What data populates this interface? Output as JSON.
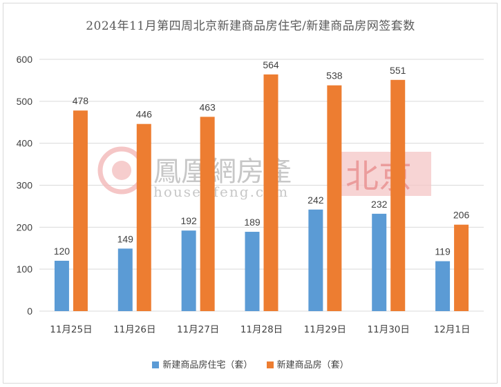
{
  "chart_data": {
    "type": "bar",
    "title": "2024年11月第四周北京新建商品房住宅/新建商品房网签套数",
    "categories": [
      "11月25日",
      "11月26日",
      "11月27日",
      "11月28日",
      "11月29日",
      "11月30日",
      "12月1日"
    ],
    "series": [
      {
        "name": "新建商品房住宅（套）",
        "values": [
          120,
          149,
          192,
          189,
          242,
          232,
          119
        ],
        "color": "#5b9bd5"
      },
      {
        "name": "新建商品房（套）",
        "values": [
          478,
          446,
          463,
          564,
          538,
          551,
          206
        ],
        "color": "#ed7d31"
      }
    ],
    "yticks": [
      0,
      100,
      200,
      300,
      400,
      500,
      600
    ],
    "ylim": [
      0,
      600
    ],
    "grid": true,
    "legend_position": "bottom"
  },
  "watermark": {
    "brand": "鳳凰網房產",
    "url": "house.ifeng.com",
    "city": "北京"
  }
}
